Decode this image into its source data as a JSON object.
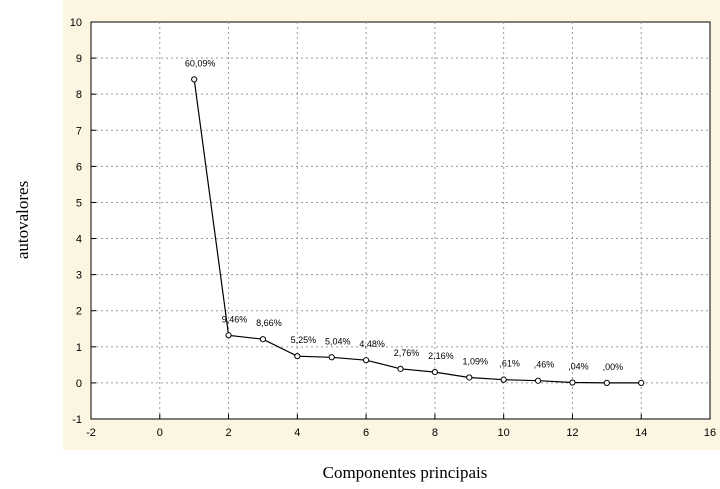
{
  "chart_data": {
    "type": "line",
    "title": "",
    "xlabel": "Componentes principais",
    "ylabel": "autovalores",
    "xlim": [
      -2,
      16
    ],
    "ylim": [
      -1,
      10
    ],
    "x_ticks": [
      -2,
      0,
      2,
      4,
      6,
      8,
      10,
      12,
      14,
      16
    ],
    "y_ticks": [
      -1,
      0,
      1,
      2,
      3,
      4,
      5,
      6,
      7,
      8,
      9,
      10
    ],
    "x_tick_labels": [
      "-2",
      "0",
      "2",
      "4",
      "6",
      "8",
      "10",
      "12",
      "14",
      "16"
    ],
    "y_tick_labels": [
      "-1",
      "0",
      "1",
      "2",
      "3",
      "4",
      "5",
      "6",
      "7",
      "8",
      "9",
      "10"
    ],
    "grid": true,
    "series": [
      {
        "x": [
          1,
          2,
          3,
          4,
          5,
          6,
          7,
          8,
          9,
          10,
          11,
          12,
          13,
          14
        ],
        "values": [
          8.41,
          1.32,
          1.21,
          0.74,
          0.71,
          0.63,
          0.39,
          0.3,
          0.15,
          0.09,
          0.06,
          0.01,
          0.0,
          0.0
        ],
        "labels": [
          "60,09%",
          "9,46%",
          "8,66%",
          "5,25%",
          "5,04%",
          "4,48%",
          "2,76%",
          "2,16%",
          "1,09%",
          ",61%",
          ",46%",
          ",04%",
          ",00%",
          ""
        ]
      }
    ],
    "colors": {
      "background": "#fbf5e2",
      "plot_area": "#ffffff",
      "line": "#000000",
      "grid": "#9a9a9a"
    }
  }
}
